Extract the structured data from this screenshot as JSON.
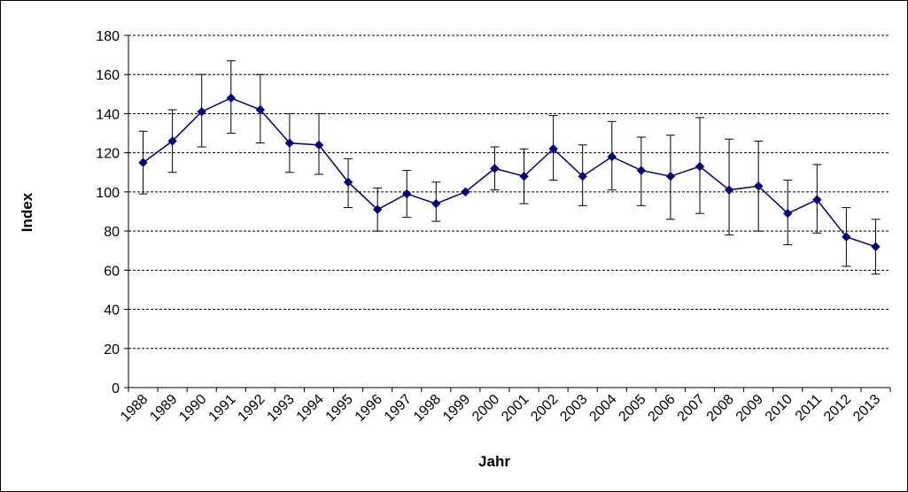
{
  "chart_data": {
    "type": "line",
    "title": "",
    "xlabel": "Jahr",
    "ylabel": "Index",
    "ylim": [
      0,
      180
    ],
    "yticks": [
      0,
      20,
      40,
      60,
      80,
      100,
      120,
      140,
      160,
      180
    ],
    "grid": "horizontal-dashed",
    "legend": "none",
    "categories": [
      "1988",
      "1989",
      "1990",
      "1991",
      "1992",
      "1993",
      "1994",
      "1995",
      "1996",
      "1997",
      "1998",
      "1999",
      "2000",
      "2001",
      "2002",
      "2003",
      "2004",
      "2005",
      "2006",
      "2007",
      "2008",
      "2009",
      "2010",
      "2011",
      "2012",
      "2013"
    ],
    "series": [
      {
        "color": "#000080",
        "values": [
          115,
          126,
          141,
          148,
          142,
          125,
          124,
          105,
          91,
          99,
          94,
          100,
          112,
          108,
          122,
          108,
          118,
          111,
          108,
          113,
          101,
          103,
          89,
          96,
          77,
          72
        ],
        "err_low": [
          99,
          110,
          123,
          130,
          125,
          110,
          109,
          92,
          80,
          87,
          85,
          100,
          101,
          94,
          106,
          93,
          101,
          93,
          86,
          89,
          78,
          80,
          73,
          79,
          62,
          58
        ],
        "err_high": [
          131,
          142,
          160,
          167,
          160,
          140,
          140,
          117,
          102,
          111,
          105,
          100,
          123,
          122,
          139,
          124,
          136,
          128,
          129,
          138,
          127,
          126,
          106,
          114,
          92,
          86
        ]
      }
    ]
  }
}
